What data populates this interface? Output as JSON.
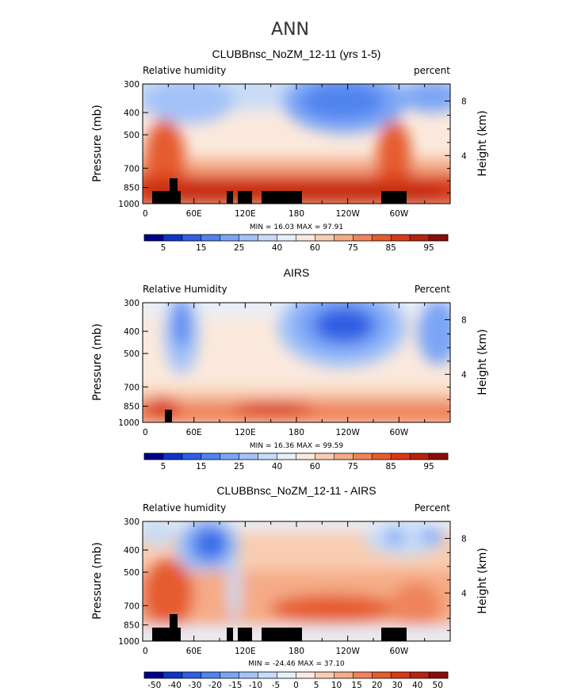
{
  "figure_title": "ANN",
  "chart_data": [
    {
      "type": "heatmap",
      "title": "CLUBBnsc_NoZM_12-11 (yrs 1-5)",
      "left_label": "Relative humidity",
      "right_label": "percent",
      "ylabel": "Pressure (mb)",
      "ylabel_right": "Height (km)",
      "x_ticks": [
        "0",
        "60E",
        "120E",
        "180",
        "120W",
        "60W"
      ],
      "y_ticks": [
        "300",
        "400",
        "500",
        "700",
        "850",
        "1000"
      ],
      "right_ticks": [
        "8",
        "4"
      ],
      "min_max": "MIN =  16.03   MAX =  97.91",
      "colorbar_labels": [
        "5",
        "15",
        "25",
        "40",
        "60",
        "75",
        "85",
        "95"
      ],
      "colorbar_colors": [
        "#00008c",
        "#1034c8",
        "#2e5fe3",
        "#4f83ee",
        "#7aa5f6",
        "#a3c3f8",
        "#c8dcf7",
        "#e7effa",
        "#fbe9dd",
        "#f9cdb1",
        "#f5ab86",
        "#ef8459",
        "#e55c2f",
        "#d83a15",
        "#b8220f",
        "#8b0d0b"
      ],
      "land_mask": true
    },
    {
      "type": "heatmap",
      "title": "AIRS",
      "left_label": "Relative Humidity",
      "right_label": "Percent",
      "ylabel": "Pressure (mb)",
      "ylabel_right": "Height (km)",
      "x_ticks": [
        "0",
        "60E",
        "120E",
        "180",
        "120W",
        "60W"
      ],
      "y_ticks": [
        "300",
        "400",
        "500",
        "700",
        "850",
        "1000"
      ],
      "right_ticks": [
        "8",
        "4"
      ],
      "min_max": "MIN =  16.36   MAX =  99.59",
      "colorbar_labels": [
        "5",
        "15",
        "25",
        "40",
        "60",
        "75",
        "85",
        "95"
      ],
      "colorbar_colors": [
        "#00008c",
        "#1034c8",
        "#2e5fe3",
        "#4f83ee",
        "#7aa5f6",
        "#a3c3f8",
        "#c8dcf7",
        "#e7effa",
        "#fbe9dd",
        "#f9cdb1",
        "#f5ab86",
        "#ef8459",
        "#e55c2f",
        "#d83a15",
        "#b8220f",
        "#8b0d0b"
      ],
      "land_mask": true
    },
    {
      "type": "heatmap",
      "title": "CLUBBnsc_NoZM_12-11 - AIRS",
      "left_label": "Relative humidity",
      "right_label": "Percent",
      "ylabel": "Pressure (mb)",
      "ylabel_right": "Height (km)",
      "x_ticks": [
        "0",
        "60E",
        "120E",
        "180",
        "120W",
        "60W"
      ],
      "y_ticks": [
        "300",
        "400",
        "500",
        "700",
        "850",
        "1000"
      ],
      "right_ticks": [
        "8",
        "4"
      ],
      "min_max": "MIN = -24.46   MAX =  37.10",
      "colorbar_labels": [
        "-50",
        "-40",
        "-30",
        "-20",
        "-15",
        "-10",
        "-5",
        "0",
        "5",
        "10",
        "15",
        "20",
        "30",
        "40",
        "50"
      ],
      "colorbar_colors": [
        "#00008c",
        "#1034c8",
        "#2e5fe3",
        "#4f83ee",
        "#7aa5f6",
        "#a3c3f8",
        "#c8dcf7",
        "#e7effa",
        "#fbe9dd",
        "#f9cdb1",
        "#f5ab86",
        "#ef8459",
        "#e55c2f",
        "#d83a15",
        "#b8220f",
        "#8b0d0b"
      ],
      "land_mask": true
    }
  ]
}
